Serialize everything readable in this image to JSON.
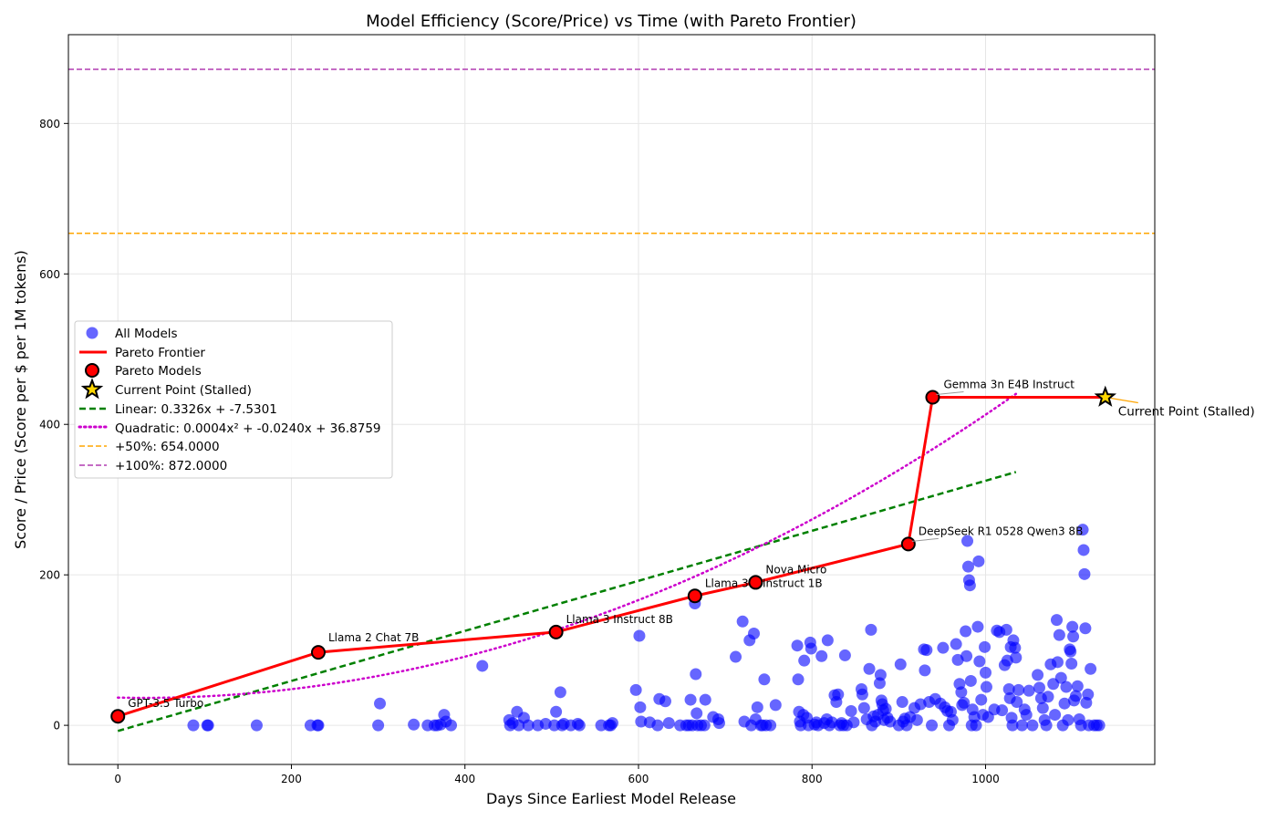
{
  "chart_data": {
    "type": "scatter",
    "title": "Model Efficiency (Score/Price) vs Time (with Pareto Frontier)",
    "xlabel": "Days Since Earliest Model Release",
    "ylabel": "Score / Price (Score per $ per 1M tokens)",
    "xlim": [
      -57,
      1195
    ],
    "ylim": [
      -52,
      918
    ],
    "xticks": [
      0,
      200,
      400,
      600,
      800,
      1000
    ],
    "yticks": [
      0,
      200,
      400,
      600,
      800
    ],
    "grid": true,
    "legend_position": "center-left",
    "legend": {
      "all_models": "All Models",
      "pareto_frontier": "Pareto Frontier",
      "pareto_models": "Pareto Models",
      "current_point": "Current Point (Stalled)",
      "linear": "Linear: 0.3326x + -7.5301",
      "quadratic": "Quadratic: 0.0004x² + -0.0240x + 36.8759",
      "plus50": "+50%: 654.0000",
      "plus100": "+100%: 872.0000"
    },
    "colors": {
      "all_models": "#0000ff",
      "pareto": "#ff0000",
      "linear": "#008000",
      "quadratic": "#cc00cc",
      "plus50": "#ffa500",
      "plus100": "#b03cb0",
      "star": "#ffd700"
    },
    "linear_fit": {
      "slope": 0.3326,
      "intercept": -7.5301,
      "x_range": [
        0,
        1035
      ]
    },
    "quadratic_fit": {
      "a": 0.0004,
      "b": -0.024,
      "c": 36.8759,
      "x_range": [
        0,
        1035
      ]
    },
    "reference_lines": [
      {
        "name": "+50%",
        "y": 654
      },
      {
        "name": "+100%",
        "y": 872
      }
    ],
    "pareto_points": [
      {
        "x": 0,
        "y": 12,
        "label": "GPT-3.5 Turbo"
      },
      {
        "x": 231,
        "y": 97,
        "label": "Llama 2 Chat 7B"
      },
      {
        "x": 505,
        "y": 124,
        "label": "Llama 3 Instruct 8B"
      },
      {
        "x": 665,
        "y": 172,
        "label": "Llama 3.2 Instruct 1B"
      },
      {
        "x": 735,
        "y": 190,
        "label": "Nova Micro"
      },
      {
        "x": 911,
        "y": 241,
        "label": "DeepSeek R1 0528 Qwen3 8B"
      },
      {
        "x": 939,
        "y": 436,
        "label": "Gemma 3n E4B Instruct"
      }
    ],
    "current_point": {
      "x": 1138,
      "y": 436,
      "label": "Current Point (Stalled)"
    },
    "scatter_points": [
      [
        87,
        0
      ],
      [
        103,
        0
      ],
      [
        104,
        0
      ],
      [
        160,
        0
      ],
      [
        222,
        0
      ],
      [
        230,
        0
      ],
      [
        231,
        0
      ],
      [
        300,
        0
      ],
      [
        302,
        29
      ],
      [
        341,
        1
      ],
      [
        357,
        0
      ],
      [
        365,
        0
      ],
      [
        368,
        0
      ],
      [
        372,
        1
      ],
      [
        376,
        14
      ],
      [
        378,
        5
      ],
      [
        384,
        0
      ],
      [
        420,
        79
      ],
      [
        451,
        7
      ],
      [
        452,
        0
      ],
      [
        455,
        3
      ],
      [
        460,
        18
      ],
      [
        462,
        0
      ],
      [
        468,
        10
      ],
      [
        473,
        0
      ],
      [
        484,
        0
      ],
      [
        493,
        2
      ],
      [
        503,
        0
      ],
      [
        505,
        18
      ],
      [
        510,
        44
      ],
      [
        512,
        0
      ],
      [
        514,
        2
      ],
      [
        522,
        0
      ],
      [
        530,
        2
      ],
      [
        532,
        0
      ],
      [
        557,
        0
      ],
      [
        566,
        0
      ],
      [
        568,
        0
      ],
      [
        570,
        3
      ],
      [
        597,
        47
      ],
      [
        601,
        119
      ],
      [
        602,
        24
      ],
      [
        603,
        5
      ],
      [
        613,
        4
      ],
      [
        622,
        0
      ],
      [
        624,
        35
      ],
      [
        631,
        32
      ],
      [
        635,
        3
      ],
      [
        648,
        0
      ],
      [
        655,
        0
      ],
      [
        658,
        0
      ],
      [
        660,
        34
      ],
      [
        662,
        0
      ],
      [
        665,
        162
      ],
      [
        666,
        68
      ],
      [
        667,
        16
      ],
      [
        668,
        0
      ],
      [
        672,
        0
      ],
      [
        676,
        0
      ],
      [
        677,
        34
      ],
      [
        686,
        11
      ],
      [
        692,
        8
      ],
      [
        693,
        3
      ],
      [
        712,
        91
      ],
      [
        720,
        138
      ],
      [
        722,
        5
      ],
      [
        728,
        113
      ],
      [
        730,
        0
      ],
      [
        733,
        122
      ],
      [
        735,
        8
      ],
      [
        737,
        24
      ],
      [
        741,
        0
      ],
      [
        743,
        0
      ],
      [
        745,
        61
      ],
      [
        747,
        0
      ],
      [
        752,
        0
      ],
      [
        758,
        27
      ],
      [
        783,
        106
      ],
      [
        784,
        61
      ],
      [
        785,
        18
      ],
      [
        786,
        5
      ],
      [
        787,
        0
      ],
      [
        790,
        14
      ],
      [
        791,
        86
      ],
      [
        794,
        10
      ],
      [
        796,
        0
      ],
      [
        798,
        110
      ],
      [
        799,
        102
      ],
      [
        803,
        1
      ],
      [
        805,
        4
      ],
      [
        807,
        0
      ],
      [
        811,
        92
      ],
      [
        814,
        3
      ],
      [
        817,
        8
      ],
      [
        818,
        113
      ],
      [
        820,
        0
      ],
      [
        823,
        4
      ],
      [
        826,
        40
      ],
      [
        828,
        31
      ],
      [
        830,
        41
      ],
      [
        832,
        0
      ],
      [
        834,
        3
      ],
      [
        836,
        0
      ],
      [
        838,
        93
      ],
      [
        840,
        0
      ],
      [
        845,
        19
      ],
      [
        848,
        4
      ],
      [
        857,
        48
      ],
      [
        858,
        41
      ],
      [
        860,
        23
      ],
      [
        863,
        8
      ],
      [
        866,
        75
      ],
      [
        868,
        127
      ],
      [
        869,
        0
      ],
      [
        871,
        12
      ],
      [
        873,
        5
      ],
      [
        876,
        14
      ],
      [
        878,
        56
      ],
      [
        879,
        67
      ],
      [
        880,
        33
      ],
      [
        881,
        28
      ],
      [
        882,
        20
      ],
      [
        883,
        7
      ],
      [
        885,
        22
      ],
      [
        887,
        10
      ],
      [
        890,
        5
      ],
      [
        900,
        0
      ],
      [
        902,
        81
      ],
      [
        904,
        31
      ],
      [
        905,
        5
      ],
      [
        907,
        9
      ],
      [
        909,
        0
      ],
      [
        913,
        11
      ],
      [
        918,
        23
      ],
      [
        921,
        7
      ],
      [
        925,
        28
      ],
      [
        929,
        101
      ],
      [
        930,
        73
      ],
      [
        932,
        100
      ],
      [
        935,
        31
      ],
      [
        938,
        0
      ],
      [
        942,
        35
      ],
      [
        948,
        29
      ],
      [
        951,
        103
      ],
      [
        953,
        24
      ],
      [
        956,
        19
      ],
      [
        958,
        0
      ],
      [
        960,
        18
      ],
      [
        962,
        7
      ],
      [
        966,
        108
      ],
      [
        968,
        87
      ],
      [
        970,
        55
      ],
      [
        972,
        44
      ],
      [
        973,
        27
      ],
      [
        975,
        30
      ],
      [
        977,
        125
      ],
      [
        978,
        92
      ],
      [
        979,
        245
      ],
      [
        980,
        211
      ],
      [
        981,
        193
      ],
      [
        982,
        186
      ],
      [
        983,
        59
      ],
      [
        984,
        0
      ],
      [
        985,
        21
      ],
      [
        987,
        11
      ],
      [
        989,
        0
      ],
      [
        991,
        131
      ],
      [
        992,
        218
      ],
      [
        993,
        85
      ],
      [
        995,
        34
      ],
      [
        997,
        14
      ],
      [
        999,
        104
      ],
      [
        1000,
        70
      ],
      [
        1001,
        51
      ],
      [
        1003,
        11
      ],
      [
        1010,
        21
      ],
      [
        1013,
        126
      ],
      [
        1016,
        124
      ],
      [
        1019,
        20
      ],
      [
        1022,
        80
      ],
      [
        1024,
        127
      ],
      [
        1025,
        86
      ],
      [
        1027,
        48
      ],
      [
        1028,
        36
      ],
      [
        1029,
        104
      ],
      [
        1030,
        10
      ],
      [
        1031,
        0
      ],
      [
        1032,
        113
      ],
      [
        1034,
        103
      ],
      [
        1035,
        90
      ],
      [
        1036,
        31
      ],
      [
        1038,
        47
      ],
      [
        1042,
        0
      ],
      [
        1045,
        21
      ],
      [
        1047,
        14
      ],
      [
        1050,
        46
      ],
      [
        1054,
        0
      ],
      [
        1060,
        67
      ],
      [
        1062,
        50
      ],
      [
        1064,
        36
      ],
      [
        1066,
        23
      ],
      [
        1068,
        7
      ],
      [
        1070,
        0
      ],
      [
        1072,
        38
      ],
      [
        1075,
        81
      ],
      [
        1078,
        55
      ],
      [
        1080,
        14
      ],
      [
        1082,
        140
      ],
      [
        1083,
        84
      ],
      [
        1085,
        120
      ],
      [
        1087,
        63
      ],
      [
        1089,
        0
      ],
      [
        1091,
        29
      ],
      [
        1093,
        51
      ],
      [
        1095,
        7
      ],
      [
        1097,
        101
      ],
      [
        1098,
        98
      ],
      [
        1099,
        82
      ],
      [
        1100,
        131
      ],
      [
        1101,
        118
      ],
      [
        1102,
        33
      ],
      [
        1104,
        39
      ],
      [
        1106,
        52
      ],
      [
        1108,
        8
      ],
      [
        1110,
        0
      ],
      [
        1112,
        260
      ],
      [
        1113,
        233
      ],
      [
        1114,
        201
      ],
      [
        1115,
        129
      ],
      [
        1116,
        30
      ],
      [
        1118,
        41
      ],
      [
        1119,
        0
      ],
      [
        1121,
        75
      ],
      [
        1125,
        0
      ],
      [
        1128,
        0
      ],
      [
        1131,
        0
      ]
    ]
  }
}
